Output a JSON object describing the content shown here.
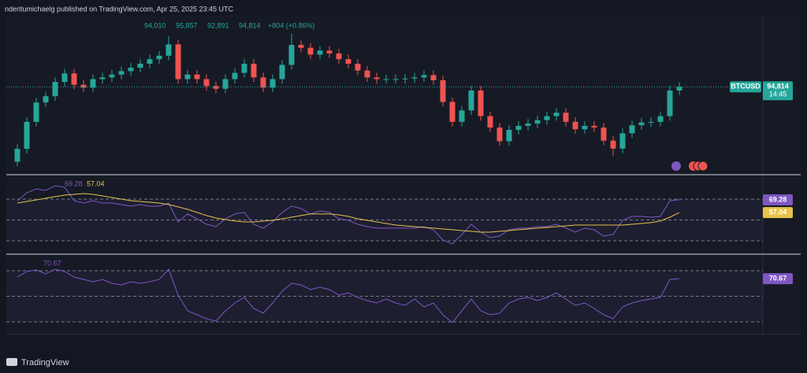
{
  "header": {
    "publisher": "nderitumichaelg published on TradingView.com, Apr 25, 2025 23:45 UTC",
    "brand": "TradingView"
  },
  "chart_data": [
    {
      "type": "candlestick",
      "symbol": "BTCUSD",
      "legend_values": [
        {
          "value": 94010,
          "label": "94,010"
        },
        {
          "value": 95857,
          "label": "95,857"
        },
        {
          "value": 92891,
          "label": "92,891"
        },
        {
          "value": 94814,
          "label": "94,814"
        },
        {
          "value": 804,
          "label": "+804 (+0.86%)"
        }
      ],
      "countdown": "14:45",
      "open": [
        93500,
        93726,
        94200,
        94540,
        94650,
        94900,
        95050,
        94850,
        94800,
        94950,
        94980,
        95030,
        95090,
        95150,
        95220,
        95300,
        95360,
        95560,
        94950,
        95030,
        94950,
        94830,
        94780,
        94950,
        95060,
        95220,
        94980,
        94800,
        94950,
        95200,
        95550,
        95500,
        95380,
        95450,
        95400,
        95300,
        95220,
        95100,
        94980,
        94950,
        94950,
        94950,
        94960,
        94980,
        95020,
        94930,
        94550,
        94200,
        94400,
        94750,
        94300,
        94100,
        93860,
        94060,
        94130,
        94170,
        94230,
        94300,
        94360,
        94200,
        94070,
        94130,
        94100,
        93870,
        93730,
        94000,
        94140,
        94190,
        94200,
        94300,
        94750
      ],
      "high": [
        93806,
        94280,
        94620,
        94730,
        94980,
        95130,
        95130,
        94930,
        95030,
        95060,
        95110,
        95170,
        95230,
        95300,
        95380,
        95440,
        95700,
        95640,
        95110,
        95110,
        95030,
        94910,
        95030,
        95140,
        95300,
        95300,
        95060,
        95030,
        95280,
        95750,
        95630,
        95580,
        95530,
        95530,
        95480,
        95380,
        95300,
        95180,
        95060,
        95030,
        95030,
        95040,
        95060,
        95100,
        95100,
        95010,
        94630,
        94480,
        94830,
        94830,
        94380,
        94180,
        94140,
        94210,
        94250,
        94310,
        94380,
        94440,
        94440,
        94280,
        94210,
        94210,
        94180,
        93950,
        94080,
        94220,
        94270,
        94280,
        94380,
        94830,
        94894
      ],
      "low": [
        93420,
        93646,
        94120,
        94460,
        94570,
        94820,
        94770,
        94720,
        94720,
        94870,
        94900,
        94950,
        95010,
        95070,
        95140,
        95220,
        95280,
        94870,
        94870,
        94870,
        94750,
        94700,
        94700,
        94870,
        94980,
        94900,
        94720,
        94720,
        94870,
        95120,
        95420,
        95300,
        95300,
        95320,
        95220,
        95140,
        95020,
        94900,
        94870,
        94870,
        94870,
        94870,
        94880,
        94900,
        94850,
        94470,
        94120,
        94120,
        94320,
        94220,
        94020,
        93780,
        93780,
        93980,
        94050,
        94090,
        94150,
        94220,
        94120,
        93990,
        93990,
        94020,
        93790,
        93600,
        93650,
        93920,
        94060,
        94110,
        94120,
        94220,
        94670
      ],
      "close": [
        93726,
        94200,
        94540,
        94650,
        94900,
        95050,
        94850,
        94800,
        94950,
        94980,
        95030,
        95090,
        95150,
        95220,
        95300,
        95360,
        95560,
        94950,
        95030,
        94950,
        94830,
        94780,
        94950,
        95060,
        95220,
        94980,
        94800,
        94950,
        95200,
        95550,
        95500,
        95380,
        95450,
        95400,
        95300,
        95220,
        95100,
        94980,
        94950,
        94950,
        94950,
        94960,
        94980,
        95020,
        94930,
        94550,
        94200,
        94400,
        94750,
        94300,
        94100,
        93860,
        94060,
        94130,
        94170,
        94230,
        94300,
        94360,
        94200,
        94070,
        94130,
        94100,
        93870,
        93730,
        94000,
        94140,
        94190,
        94200,
        94300,
        94750,
        94814
      ],
      "up_color": "#26a69a",
      "down_color": "#ef5350",
      "ylim": [
        93300,
        96200
      ]
    },
    {
      "type": "line",
      "series": [
        {
          "color": "#7e57c2",
          "values": [
            68.5,
            76.0,
            79.8,
            78.3,
            82.8,
            81.3,
            68.5,
            66.2,
            68.5,
            66.2,
            66.2,
            64.7,
            63.2,
            64.7,
            63.2,
            63.2,
            66.2,
            48.1,
            55.7,
            51.1,
            45.8,
            43.6,
            51.1,
            55.7,
            57.2,
            45.8,
            42.1,
            48.1,
            57.2,
            63.2,
            60.9,
            55.7,
            58.7,
            57.2,
            51.1,
            49.6,
            45.8,
            43.6,
            42.1,
            42.1,
            42.1,
            42.1,
            42.1,
            43.6,
            40.6,
            30.8,
            27.0,
            36.0,
            45.8,
            38.3,
            33.0,
            34.5,
            40.6,
            42.1,
            42.1,
            43.6,
            43.6,
            45.8,
            42.1,
            38.3,
            42.1,
            40.6,
            34.5,
            36.0,
            49.6,
            53.4,
            53.4,
            52.6,
            53.4,
            68.5,
            69.28
          ]
        },
        {
          "color": "#e6c34a",
          "values": [
            66.2,
            67.7,
            69.2,
            70.8,
            72.3,
            73.8,
            74.5,
            75.3,
            74.5,
            73.0,
            71.5,
            70.0,
            68.5,
            67.7,
            67.0,
            66.2,
            64.7,
            62.5,
            60.2,
            57.2,
            54.2,
            51.9,
            50.4,
            48.9,
            48.1,
            48.1,
            48.9,
            49.6,
            51.1,
            52.6,
            54.2,
            55.7,
            55.7,
            55.7,
            54.9,
            53.4,
            51.1,
            49.6,
            48.1,
            46.6,
            45.1,
            44.3,
            43.6,
            42.8,
            42.1,
            41.3,
            40.6,
            39.8,
            39.1,
            38.3,
            38.3,
            39.1,
            39.8,
            40.6,
            41.3,
            42.1,
            42.8,
            43.6,
            44.3,
            45.1,
            45.1,
            45.1,
            45.1,
            45.1,
            45.1,
            45.8,
            46.6,
            47.4,
            48.9,
            52.6,
            57.04
          ]
        }
      ],
      "levels": [
        70,
        50,
        30
      ],
      "ylim": [
        17.9,
        93.4
      ]
    },
    {
      "type": "line",
      "series": [
        {
          "color": "#7e57c2",
          "values": [
            72.6,
            79.1,
            80.9,
            76.3,
            81.8,
            79.1,
            72.6,
            69.8,
            67.1,
            69.8,
            65.2,
            63.4,
            67.1,
            65.2,
            67.1,
            69.8,
            81.8,
            51.4,
            32.9,
            28.3,
            23.7,
            20.9,
            32.9,
            42.1,
            48.6,
            35.7,
            30.1,
            42.1,
            56.0,
            65.2,
            63.4,
            57.8,
            60.6,
            57.8,
            51.4,
            54.1,
            48.6,
            44.9,
            42.1,
            46.8,
            42.1,
            39.4,
            46.8,
            37.5,
            42.1,
            28.3,
            19.1,
            32.9,
            46.8,
            32.9,
            28.3,
            30.1,
            42.1,
            46.8,
            48.6,
            44.9,
            48.6,
            54.1,
            46.8,
            39.4,
            42.1,
            35.7,
            28.3,
            23.7,
            37.5,
            42.1,
            44.9,
            46.8,
            48.6,
            69.8,
            70.67
          ]
        }
      ],
      "levels": [
        80,
        50,
        20
      ],
      "ylim": [
        5.2,
        99.4
      ]
    }
  ]
}
